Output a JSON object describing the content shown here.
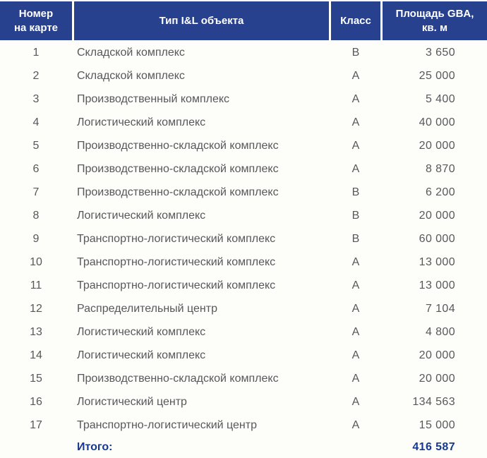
{
  "table": {
    "headers": {
      "number": "Номер\nна карте",
      "type": "Тип I&L объекта",
      "cls": "Класс",
      "area": "Площадь GBA,\nкв. м"
    },
    "rows": [
      {
        "num": "1",
        "type": "Складской комплекс",
        "cls": "B",
        "area": "3 650"
      },
      {
        "num": "2",
        "type": "Складской комплекс",
        "cls": "A",
        "area": "25 000"
      },
      {
        "num": "3",
        "type": "Производственный комплекс",
        "cls": "A",
        "area": "5 400"
      },
      {
        "num": "4",
        "type": "Логистический комплекс",
        "cls": "A",
        "area": "40 000"
      },
      {
        "num": "5",
        "type": "Производственно-складской комплекс",
        "cls": "A",
        "area": "20 000"
      },
      {
        "num": "6",
        "type": "Производственно-складской комплекс",
        "cls": "A",
        "area": "8 870"
      },
      {
        "num": "7",
        "type": "Производственно-складской комплекс",
        "cls": "B",
        "area": "6 200"
      },
      {
        "num": "8",
        "type": "Логистический комплекс",
        "cls": "B",
        "area": "20 000"
      },
      {
        "num": "9",
        "type": "Транспортно-логистический комплекс",
        "cls": "B",
        "area": "60 000"
      },
      {
        "num": "10",
        "type": "Транспортно-логистический комплекс",
        "cls": "A",
        "area": "13 000"
      },
      {
        "num": "11",
        "type": "Транспортно-логистический комплекс",
        "cls": "A",
        "area": "13 000"
      },
      {
        "num": "12",
        "type": "Распределительный центр",
        "cls": "A",
        "area": "7 104"
      },
      {
        "num": "13",
        "type": "Логистический комплекс",
        "cls": "A",
        "area": "4 800"
      },
      {
        "num": "14",
        "type": "Логистический комплекс",
        "cls": "A",
        "area": "20 000"
      },
      {
        "num": "15",
        "type": "Производственно-складской комплекс",
        "cls": "A",
        "area": "20 000"
      },
      {
        "num": "16",
        "type": "Логистический центр",
        "cls": "A",
        "area": "134 563"
      },
      {
        "num": "17",
        "type": "Транспортно-логистический центр",
        "cls": "A",
        "area": "15 000"
      }
    ],
    "total_label": "Итого:",
    "total_value": "416 587"
  },
  "colors": {
    "header_bg": "#28418f",
    "header_text": "#ffffff",
    "body_text": "#58585b",
    "total_text": "#16388e",
    "page_bg": "#fdfdfa"
  }
}
